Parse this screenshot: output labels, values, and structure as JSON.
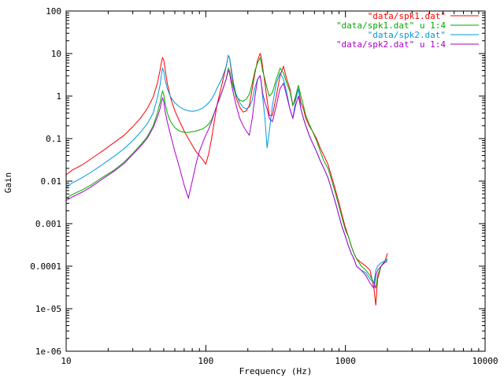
{
  "chart_data": {
    "type": "line",
    "title": "",
    "xlabel": "Frequency (Hz)",
    "ylabel": "Gain",
    "xscale": "log",
    "yscale": "log",
    "xlim": [
      10,
      10000
    ],
    "ylim": [
      1e-06,
      100
    ],
    "x_ticks": [
      10,
      100,
      1000,
      10000
    ],
    "x_tick_labels": [
      "10",
      "100",
      "1000",
      "10000"
    ],
    "y_ticks": [
      1e-06,
      1e-05,
      0.0001,
      0.001,
      0.01,
      0.1,
      1,
      10,
      100
    ],
    "y_tick_labels": [
      "1e-06",
      "1e-05",
      "0.0001",
      "0.001",
      "0.01",
      "0.1",
      "1",
      "10",
      "100"
    ],
    "grid": false,
    "legend_position": "top-right",
    "series": [
      {
        "name": "\"data/spk1.dat\"",
        "color": "#ff0000",
        "x": [
          10,
          11,
          13,
          15,
          18,
          22,
          26,
          30,
          34,
          38,
          42,
          45,
          47,
          48,
          49,
          50,
          51,
          53,
          56,
          60,
          65,
          70,
          75,
          80,
          85,
          90,
          95,
          100,
          105,
          110,
          115,
          120,
          130,
          140,
          145,
          148,
          152,
          158,
          165,
          175,
          185,
          195,
          205,
          215,
          225,
          235,
          245,
          250,
          255,
          265,
          275,
          285,
          300,
          320,
          340,
          360,
          380,
          400,
          420,
          440,
          460,
          480,
          500,
          520,
          550,
          580,
          620,
          660,
          700,
          750,
          800,
          850,
          900,
          950,
          1000,
          1050,
          1100,
          1150,
          1200,
          1300,
          1400,
          1500,
          1600,
          1650,
          1700,
          1800,
          1900,
          2000
        ],
        "y": [
          0.014,
          0.018,
          0.024,
          0.033,
          0.05,
          0.08,
          0.12,
          0.19,
          0.3,
          0.5,
          0.95,
          2,
          4,
          6,
          8,
          7,
          4.5,
          2,
          0.9,
          0.45,
          0.25,
          0.15,
          0.1,
          0.07,
          0.05,
          0.04,
          0.032,
          0.025,
          0.045,
          0.1,
          0.25,
          0.6,
          1.8,
          5,
          9,
          8,
          4,
          1.7,
          0.9,
          0.55,
          0.42,
          0.45,
          0.6,
          1.5,
          3.5,
          7,
          10,
          8,
          5,
          2,
          0.8,
          0.35,
          0.35,
          1,
          3,
          5,
          2.5,
          1.5,
          0.6,
          0.9,
          1.5,
          0.7,
          0.5,
          0.3,
          0.2,
          0.15,
          0.1,
          0.06,
          0.04,
          0.025,
          0.012,
          0.006,
          0.003,
          0.0015,
          0.0008,
          0.0005,
          0.0003,
          0.0002,
          0.00015,
          0.00012,
          0.0001,
          8e-05,
          3e-05,
          1.2e-05,
          5e-05,
          0.0001,
          0.00012,
          0.0002
        ]
      },
      {
        "name": "\"data/spk1.dat\" u 1:4",
        "color": "#00aa00",
        "x": [
          10,
          11,
          13,
          15,
          18,
          22,
          26,
          30,
          34,
          38,
          42,
          45,
          47,
          48,
          49,
          50,
          51,
          53,
          56,
          60,
          65,
          70,
          75,
          80,
          85,
          90,
          95,
          100,
          105,
          110,
          115,
          120,
          130,
          140,
          145,
          148,
          152,
          158,
          165,
          175,
          185,
          195,
          205,
          215,
          225,
          235,
          245,
          250,
          255,
          265,
          275,
          285,
          300,
          320,
          340,
          360,
          380,
          400,
          420,
          440,
          460,
          480,
          500,
          520,
          550,
          580,
          620,
          660,
          700,
          750,
          800,
          850,
          900,
          950,
          1000,
          1050,
          1100,
          1150,
          1200,
          1300,
          1400,
          1500,
          1600,
          1650,
          1700,
          1800,
          1900,
          2000
        ],
        "y": [
          0.004,
          0.0048,
          0.0062,
          0.008,
          0.012,
          0.018,
          0.028,
          0.045,
          0.07,
          0.11,
          0.2,
          0.4,
          0.7,
          1,
          1.3,
          1.1,
          0.7,
          0.4,
          0.25,
          0.18,
          0.15,
          0.14,
          0.14,
          0.145,
          0.15,
          0.16,
          0.17,
          0.19,
          0.22,
          0.28,
          0.4,
          0.6,
          1.2,
          2.5,
          4.5,
          4,
          2.5,
          1.5,
          1,
          0.8,
          0.75,
          0.85,
          1.1,
          2,
          4,
          6,
          8,
          6,
          4,
          2.5,
          1.5,
          1,
          1.2,
          2.5,
          4.5,
          3.5,
          2,
          1.3,
          0.6,
          1,
          1.8,
          1,
          0.6,
          0.35,
          0.22,
          0.15,
          0.09,
          0.05,
          0.03,
          0.02,
          0.01,
          0.005,
          0.0025,
          0.0013,
          0.0007,
          0.0005,
          0.0003,
          0.0002,
          0.00015,
          0.0001,
          8e-05,
          6e-05,
          4e-05,
          3e-05,
          6e-05,
          0.0001,
          0.00013,
          0.00015
        ]
      },
      {
        "name": "\"data/spk2.dat\"",
        "color": "#0099dd",
        "x": [
          10,
          11,
          13,
          15,
          18,
          22,
          26,
          30,
          34,
          38,
          42,
          45,
          47,
          48,
          49,
          50,
          51,
          53,
          56,
          60,
          65,
          70,
          75,
          80,
          85,
          90,
          95,
          100,
          105,
          110,
          115,
          120,
          130,
          140,
          145,
          148,
          152,
          158,
          165,
          175,
          185,
          195,
          205,
          215,
          225,
          235,
          245,
          250,
          255,
          265,
          275,
          285,
          300,
          320,
          340,
          360,
          380,
          400,
          420,
          440,
          460,
          480,
          500,
          520,
          550,
          580,
          620,
          660,
          700,
          750,
          800,
          850,
          900,
          950,
          1000,
          1050,
          1100,
          1150,
          1200,
          1300,
          1400,
          1500,
          1600,
          1650,
          1700,
          1800,
          1900,
          2000
        ],
        "y": [
          0.007,
          0.009,
          0.012,
          0.016,
          0.024,
          0.038,
          0.058,
          0.09,
          0.14,
          0.22,
          0.4,
          0.9,
          1.8,
          3,
          4.5,
          3.8,
          2.5,
          1.5,
          0.95,
          0.7,
          0.55,
          0.48,
          0.45,
          0.44,
          0.45,
          0.48,
          0.52,
          0.6,
          0.7,
          0.85,
          1.1,
          1.5,
          2.5,
          5,
          9,
          8,
          4.5,
          2,
          1.1,
          0.7,
          0.55,
          0.5,
          0.55,
          0.8,
          1.6,
          2.5,
          3,
          2,
          1,
          0.3,
          0.06,
          0.15,
          0.6,
          2,
          3.5,
          2.5,
          1.2,
          0.5,
          0.3,
          0.8,
          1.5,
          0.5,
          0.3,
          0.2,
          0.12,
          0.08,
          0.05,
          0.03,
          0.02,
          0.012,
          0.006,
          0.003,
          0.0015,
          0.0008,
          0.0005,
          0.0003,
          0.0002,
          0.00015,
          0.0001,
          8e-05,
          7e-05,
          5e-05,
          4e-05,
          8e-05,
          0.0001,
          0.00012,
          0.00013,
          0.00014
        ]
      },
      {
        "name": "\"data/spk2.dat\" u 1:4",
        "color": "#aa00cc",
        "x": [
          10,
          11,
          13,
          15,
          18,
          22,
          26,
          30,
          34,
          38,
          42,
          45,
          47,
          48,
          49,
          50,
          51,
          53,
          56,
          60,
          65,
          70,
          75,
          80,
          85,
          90,
          95,
          100,
          105,
          110,
          115,
          120,
          130,
          140,
          145,
          148,
          152,
          158,
          165,
          175,
          185,
          195,
          205,
          215,
          225,
          235,
          245,
          250,
          255,
          265,
          275,
          285,
          300,
          320,
          340,
          360,
          380,
          400,
          420,
          440,
          460,
          480,
          500,
          520,
          550,
          580,
          620,
          660,
          700,
          750,
          800,
          850,
          900,
          950,
          1000,
          1050,
          1100,
          1150,
          1200,
          1300,
          1400,
          1500,
          1600,
          1650,
          1700,
          1800,
          1900,
          2000
        ],
        "y": [
          0.0035,
          0.0042,
          0.0055,
          0.0072,
          0.011,
          0.017,
          0.026,
          0.042,
          0.065,
          0.1,
          0.18,
          0.32,
          0.5,
          0.7,
          0.9,
          0.75,
          0.45,
          0.25,
          0.12,
          0.05,
          0.02,
          0.008,
          0.004,
          0.01,
          0.025,
          0.05,
          0.08,
          0.12,
          0.17,
          0.25,
          0.4,
          0.6,
          1.2,
          2.5,
          4,
          3.5,
          2,
          1.1,
          0.6,
          0.3,
          0.2,
          0.15,
          0.12,
          0.3,
          1,
          2.5,
          3,
          2,
          1.2,
          0.7,
          0.5,
          0.3,
          0.25,
          0.6,
          1.5,
          2,
          1,
          0.5,
          0.3,
          0.6,
          1,
          0.5,
          0.3,
          0.2,
          0.12,
          0.08,
          0.05,
          0.03,
          0.02,
          0.012,
          0.006,
          0.003,
          0.0015,
          0.0008,
          0.0005,
          0.0003,
          0.0002,
          0.00015,
          0.0001,
          8e-05,
          6e-05,
          4e-05,
          3e-05,
          6e-05,
          8e-05,
          0.0001,
          0.00012,
          0.00013
        ]
      }
    ]
  }
}
